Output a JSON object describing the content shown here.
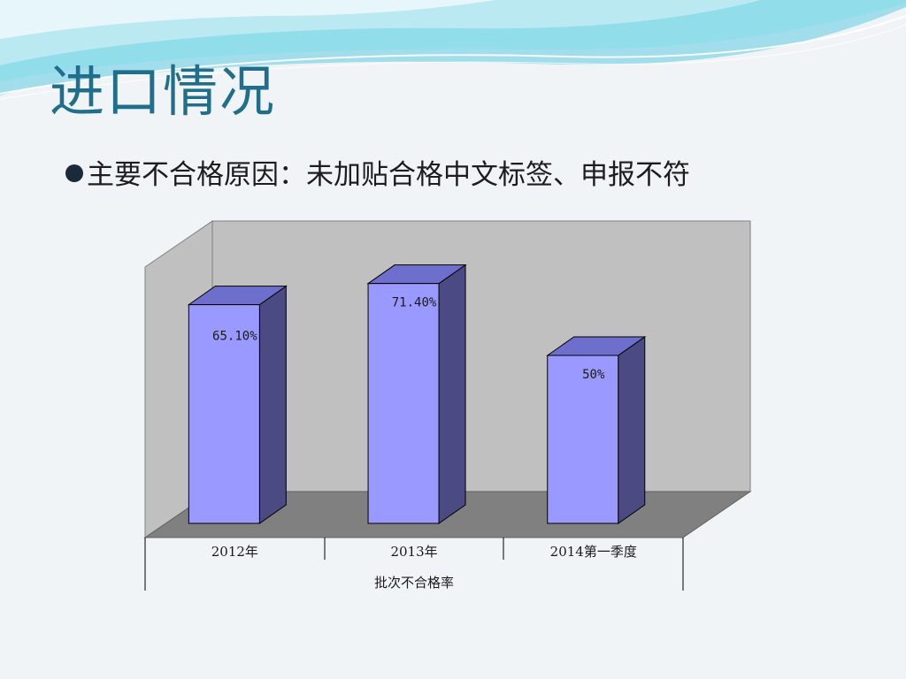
{
  "slide": {
    "title": "进口情况",
    "bullet": "主要不合格原因：未加贴合格中文标签、申报不符"
  },
  "colors": {
    "title": "#1f6f8c",
    "bar_front": "#9999ff",
    "bar_side": "#4b4a82",
    "bar_top": "#6e6ecc",
    "back_wall": "#c0c0c0",
    "floor": "#808080"
  },
  "chart_data": {
    "type": "bar",
    "style": "3d",
    "categories": [
      "2012年",
      "2013年",
      "2014第一季度"
    ],
    "values": [
      65.1,
      71.4,
      50
    ],
    "data_labels": [
      "65.10%",
      "71.40%",
      "50%"
    ],
    "group_label": "批次不合格率",
    "ylim": [
      0,
      100
    ],
    "grid": false,
    "legend": "none"
  }
}
